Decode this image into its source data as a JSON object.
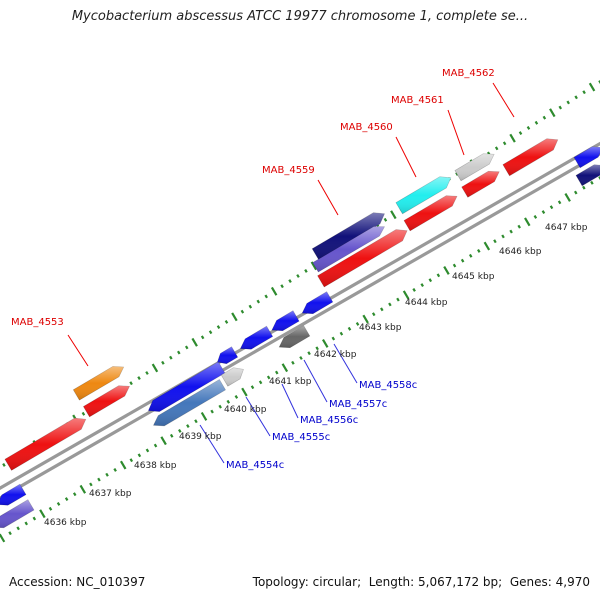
{
  "title": "Mycobacterium abscessus ATCC 19977 chromosome 1, complete se...",
  "footer": {
    "accession_label": "Accession:",
    "accession": "NC_010397",
    "topology_label": "Topology:",
    "topology": "circular",
    "length_label": "Length:",
    "length": "5,067,172 bp",
    "genes_label": "Genes:",
    "genes": "4,970"
  },
  "colors": {
    "backbone": "#999999",
    "tick": "#2e8b2e",
    "forward_label": "#dd0000",
    "reverse_label": "#0000cc",
    "red": "#ee1111",
    "blue": "#1111ee",
    "navy": "#11117a",
    "orange": "#ee8811",
    "cyan": "#22eeee",
    "lightgray": "#cccccc",
    "darkgray": "#666666",
    "steelblue": "#4477bb",
    "slateblue": "#6655cc"
  },
  "tick_labels": [
    "4636 kbp",
    "4637 kbp",
    "4638 kbp",
    "4639 kbp",
    "4640 kbp",
    "4641 kbp",
    "4642 kbp",
    "4643 kbp",
    "4644 kbp",
    "4645 kbp",
    "4646 kbp",
    "4647 kbp"
  ],
  "forward_gene_labels": [
    "MAB_4553",
    "MAB_4559",
    "MAB_4560",
    "MAB_4561",
    "MAB_4562"
  ],
  "reverse_gene_labels": [
    "MAB_4554c",
    "MAB_4555c",
    "MAB_4556c",
    "MAB_4557c",
    "MAB_4558c"
  ]
}
